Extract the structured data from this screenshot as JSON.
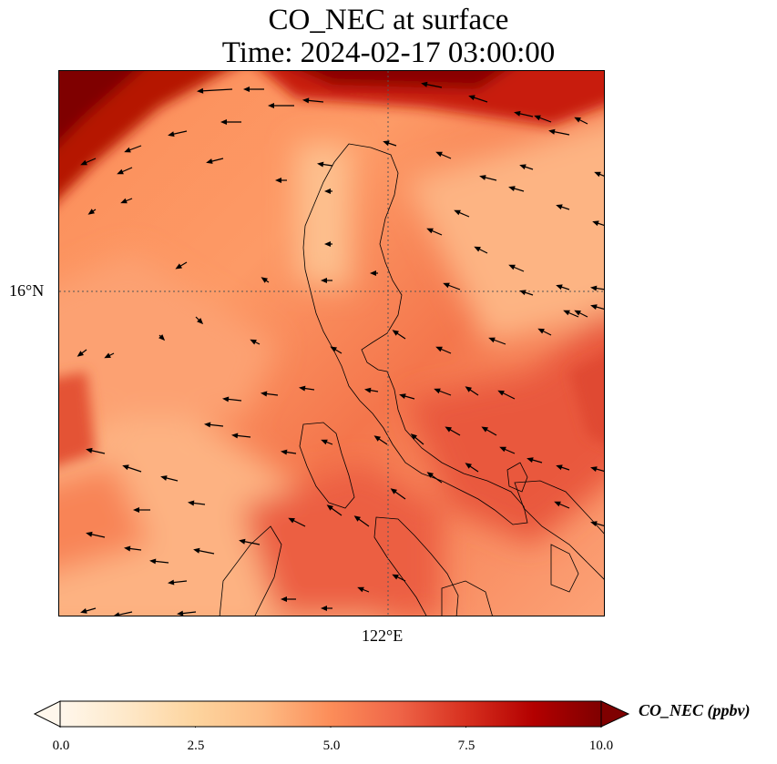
{
  "title": {
    "line1": "CO_NEC at surface",
    "line2": "Time: 2024-02-17 03:00:00"
  },
  "map": {
    "lat_label": "16°N",
    "lon_label": "122°E",
    "field_name": "CO_NEC",
    "quiver_color": "#000000",
    "coastline_color": "#000000",
    "gridline_color": "#555555"
  },
  "colorbar": {
    "label": "CO_NEC (ppbv)",
    "colormap": "OrRd",
    "vmin": 0.0,
    "vmax": 10.0,
    "extend": "both",
    "ticks": [
      "0.0",
      "2.5",
      "5.0",
      "7.5",
      "10.0"
    ],
    "stops": [
      "#fff7ec",
      "#fee8c8",
      "#fdd49e",
      "#fdbb84",
      "#fc8d59",
      "#ef6548",
      "#d7301f",
      "#b30000",
      "#7f0000"
    ]
  }
}
